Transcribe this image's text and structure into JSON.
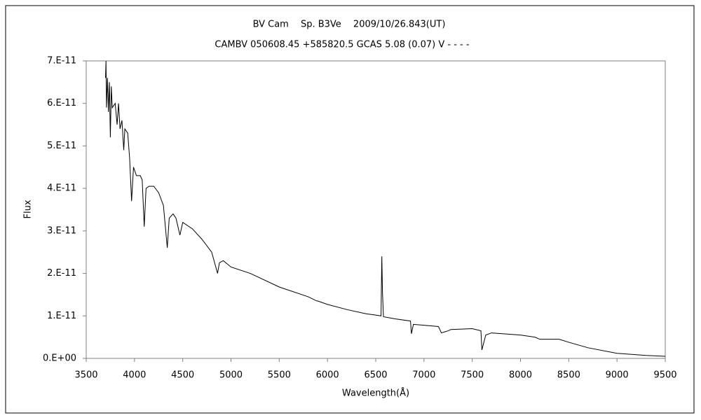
{
  "chart_data": {
    "type": "line",
    "title": "BV Cam　 Sp. B3Ve　 2009/10/26.843(UT)",
    "subtitle": "CAMBV 050608.45 +585820.5 GCAS 5.08 (0.07) V - - - -",
    "x_label": "Wavelength(Å)",
    "y_label": "Flux",
    "color": "#000000",
    "grid": false,
    "x": [
      3700,
      3705,
      3710,
      3720,
      3730,
      3740,
      3750,
      3760,
      3770,
      3800,
      3820,
      3835,
      3850,
      3870,
      3889,
      3900,
      3930,
      3950,
      3970,
      3990,
      4020,
      4060,
      4080,
      4101,
      4120,
      4150,
      4200,
      4250,
      4300,
      4340,
      4360,
      4400,
      4430,
      4471,
      4500,
      4600,
      4700,
      4800,
      4861,
      4880,
      4920,
      5000,
      5200,
      5500,
      5800,
      5890,
      5900,
      6000,
      6200,
      6400,
      6500,
      6555,
      6563,
      6570,
      6580,
      6700,
      6860,
      6870,
      6890,
      7000,
      7150,
      7180,
      7250,
      7280,
      7500,
      7590,
      7600,
      7640,
      7700,
      8000,
      8150,
      8200,
      8400,
      8500,
      8700,
      9000,
      9300,
      9500
    ],
    "values": [
      6.6e-11,
      7e-11,
      5.9e-11,
      6.6e-11,
      5.8e-11,
      6.5e-11,
      5.2e-11,
      6.4e-11,
      5.9e-11,
      6e-11,
      5.5e-11,
      6e-11,
      5.4e-11,
      5.6e-11,
      4.9e-11,
      5.4e-11,
      5.3e-11,
      4.7e-11,
      3.7e-11,
      4.5e-11,
      4.3e-11,
      4.3e-11,
      4.2e-11,
      3.1e-11,
      4e-11,
      4.05e-11,
      4.05e-11,
      3.9e-11,
      3.6e-11,
      2.6e-11,
      3.3e-11,
      3.4e-11,
      3.3e-11,
      2.9e-11,
      3.2e-11,
      3.05e-11,
      2.8e-11,
      2.5e-11,
      2e-11,
      2.25e-11,
      2.3e-11,
      2.15e-11,
      2e-11,
      1.68e-11,
      1.45e-11,
      1.35e-11,
      1.35e-11,
      1.27e-11,
      1.15e-11,
      1.05e-11,
      1.02e-11,
      1e-11,
      2.4e-11,
      1.55e-11,
      9.8e-12,
      9.3e-12,
      8.8e-12,
      5.8e-12,
      8e-12,
      7.8e-12,
      7.5e-12,
      6e-12,
      6.5e-12,
      6.8e-12,
      7e-12,
      6.5e-12,
      2e-12,
      5.5e-12,
      6e-12,
      5.5e-12,
      5e-12,
      4.5e-12,
      4.5e-12,
      3.8e-12,
      2.5e-12,
      1.2e-12,
      7e-13,
      5e-13
    ],
    "xlim": [
      3500,
      9500
    ],
    "xticks": [
      3500,
      4000,
      4500,
      5000,
      5500,
      6000,
      6500,
      7000,
      7500,
      8000,
      8500,
      9000,
      9500
    ],
    "ylim": [
      0,
      7e-11
    ],
    "yticks": [
      {
        "value": 0,
        "label": "0.E+00"
      },
      {
        "value": 1e-11,
        "label": "1.E-11"
      },
      {
        "value": 2e-11,
        "label": "2.E-11"
      },
      {
        "value": 3e-11,
        "label": "3.E-11"
      },
      {
        "value": 4e-11,
        "label": "4.E-11"
      },
      {
        "value": 5e-11,
        "label": "5.E-11"
      },
      {
        "value": 6e-11,
        "label": "6.E-11"
      },
      {
        "value": 7e-11,
        "label": "7.E-11"
      }
    ]
  }
}
